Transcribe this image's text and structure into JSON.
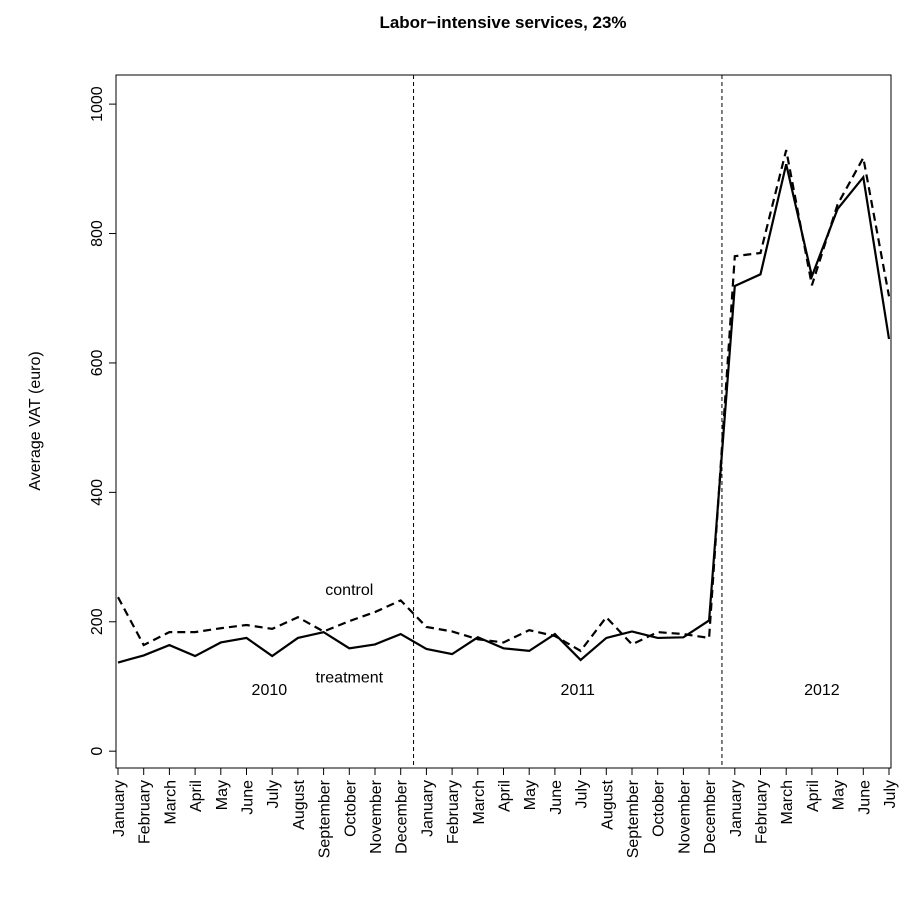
{
  "chart_data": {
    "type": "line",
    "title": "Labor−intensive services, 23%",
    "y_label": "Average VAT (euro)",
    "categories": [
      "January",
      "February",
      "March",
      "April",
      "May",
      "June",
      "July",
      "August",
      "September",
      "October",
      "November",
      "December",
      "January",
      "February",
      "March",
      "April",
      "May",
      "June",
      "July",
      "August",
      "September",
      "October",
      "November",
      "December",
      "January",
      "February",
      "March",
      "April",
      "May",
      "June",
      "July"
    ],
    "annotations": [
      "2010",
      "2011",
      "2012"
    ],
    "series": [
      {
        "name": "control",
        "color": "#000000",
        "line_style": "dashed",
        "values": [
          238,
          164,
          184,
          184,
          190,
          195,
          189,
          207,
          185,
          201,
          215,
          233,
          192,
          185,
          173,
          168,
          187,
          178,
          155,
          207,
          165,
          184,
          181,
          175,
          765,
          770,
          929,
          720,
          845,
          917,
          703
        ]
      },
      {
        "name": "treatment",
        "color": "#000000",
        "line_style": "solid",
        "values": [
          137,
          148,
          164,
          147,
          168,
          175,
          147,
          175,
          184,
          159,
          165,
          181,
          158,
          150,
          176,
          159,
          155,
          181,
          141,
          175,
          185,
          175,
          176,
          202,
          719,
          737,
          907,
          734,
          838,
          887,
          637
        ]
      }
    ],
    "ylim": [
      -26,
      1045
    ],
    "yticks": [
      0,
      200,
      400,
      600,
      800,
      1000
    ],
    "grid": false
  }
}
